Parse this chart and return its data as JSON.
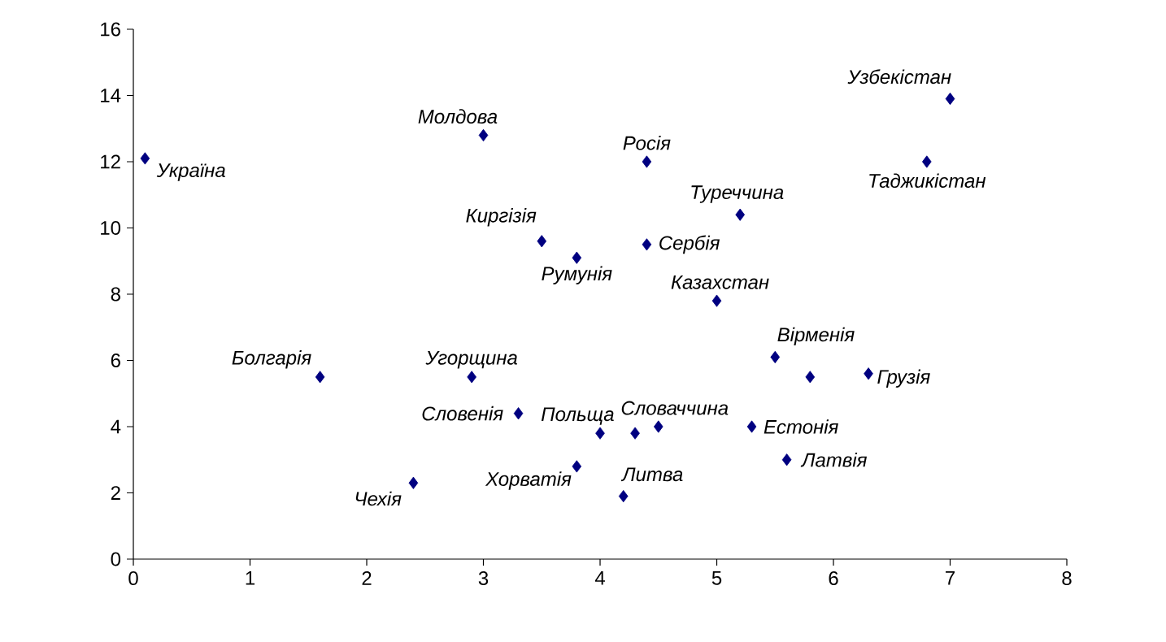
{
  "chart_data": {
    "type": "scatter",
    "color": "#000080",
    "marker": "diamond",
    "x": [
      0.1,
      3.0,
      4.4,
      7.0,
      6.8,
      5.2,
      3.5,
      4.4,
      3.8,
      5.0,
      5.5,
      6.3,
      1.6,
      2.9,
      3.3,
      4.0,
      4.5,
      5.3,
      5.6,
      4.2,
      3.8,
      2.4,
      4.3,
      5.8
    ],
    "values": [
      12.1,
      12.8,
      12.0,
      13.9,
      12.0,
      10.4,
      9.6,
      9.5,
      9.1,
      7.8,
      6.1,
      5.6,
      5.5,
      5.5,
      4.4,
      3.8,
      4.0,
      4.0,
      3.0,
      1.9,
      2.8,
      2.3,
      3.8,
      5.5
    ],
    "xlim": [
      0,
      8
    ],
    "ylim": [
      0,
      16
    ],
    "xticks": [
      0,
      1,
      2,
      3,
      4,
      5,
      6,
      7,
      8
    ],
    "yticks": [
      0,
      2,
      4,
      6,
      8,
      10,
      12,
      14,
      16
    ],
    "annotations": [
      {
        "text": "Україна",
        "x": 0.1,
        "y": 12.1
      },
      {
        "text": "Молдова",
        "x": 3.0,
        "y": 12.8
      },
      {
        "text": "Росія",
        "x": 4.4,
        "y": 12.0
      },
      {
        "text": "Узбекістан",
        "x": 7.0,
        "y": 13.9
      },
      {
        "text": "Таджикістан",
        "x": 6.8,
        "y": 12.0
      },
      {
        "text": "Туреччина",
        "x": 5.2,
        "y": 10.4
      },
      {
        "text": "Киргізія",
        "x": 3.5,
        "y": 9.6
      },
      {
        "text": "Сербія",
        "x": 4.4,
        "y": 9.5
      },
      {
        "text": "Румунія",
        "x": 3.8,
        "y": 9.1
      },
      {
        "text": "Казахстан",
        "x": 5.0,
        "y": 7.8
      },
      {
        "text": "Вірменія",
        "x": 5.5,
        "y": 6.1
      },
      {
        "text": "Грузія",
        "x": 6.3,
        "y": 5.6
      },
      {
        "text": "Болгарія",
        "x": 1.6,
        "y": 5.5
      },
      {
        "text": "Угорщина",
        "x": 2.9,
        "y": 5.5
      },
      {
        "text": "Словенія",
        "x": 3.3,
        "y": 4.4
      },
      {
        "text": "Польща",
        "x": 4.0,
        "y": 3.8
      },
      {
        "text": "Словаччина",
        "x": 4.5,
        "y": 4.0
      },
      {
        "text": "Естонія",
        "x": 5.3,
        "y": 4.0
      },
      {
        "text": "Латвія",
        "x": 5.6,
        "y": 3.0
      },
      {
        "text": "Литва",
        "x": 4.2,
        "y": 1.9
      },
      {
        "text": "Хорватія",
        "x": 3.8,
        "y": 2.8
      },
      {
        "text": "Чехія",
        "x": 2.4,
        "y": 2.3
      }
    ]
  }
}
